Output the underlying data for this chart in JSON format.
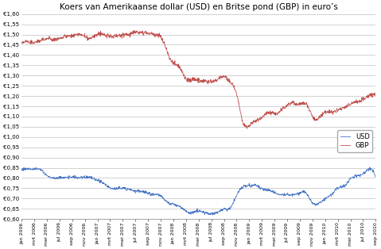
{
  "title": "Koers van Amerikaanse dollar (USD) en Britse pond (GBP) in euro’s",
  "ylabel": "",
  "ylim": [
    0.6,
    1.6
  ],
  "yticks": [
    0.6,
    0.65,
    0.7,
    0.75,
    0.8,
    0.85,
    0.9,
    0.95,
    1.0,
    1.05,
    1.1,
    1.15,
    1.2,
    1.25,
    1.3,
    1.35,
    1.4,
    1.45,
    1.5,
    1.55,
    1.6
  ],
  "ytick_labels": [
    "€0,60",
    "€0,65",
    "€0,70",
    "€0,75",
    "€0,80",
    "€0,85",
    "€0,90",
    "€0,95",
    "€1,00",
    "€1,05",
    "€1,10",
    "€1,15",
    "€1,20",
    "€1,25",
    "€1,30",
    "€1,35",
    "€1,40",
    "€1,45",
    "€1,50",
    "€1,55",
    "€1,60"
  ],
  "usd_color": "#4472C4",
  "gbp_color": "#C0504D",
  "legend_usd": "USD",
  "legend_gbp": "GBP",
  "background_color": "#FFFFFF",
  "grid_color": "#BFBFBF",
  "title_fontsize": 7.5,
  "xtick_labels": [
    "jan 2006",
    "mrt 2006",
    "mei 2006",
    "jul 2006",
    "sep 2006",
    "nov 2006",
    "jan 2007",
    "mrt 2007",
    "mei 2007",
    "jul 2007",
    "sep 2007",
    "nov 2007",
    "jan 2008",
    "mrt 2008",
    "mei 2008",
    "jul 2008",
    "sep 2008",
    "nov 2008",
    "jan 2009",
    "mrt 2009",
    "mei 2009",
    "jul 2009",
    "sep 2009",
    "nov 2009",
    "jan 2010",
    "mrt 2010",
    "mei 2010",
    "jul 2010",
    "sep 2010"
  ]
}
